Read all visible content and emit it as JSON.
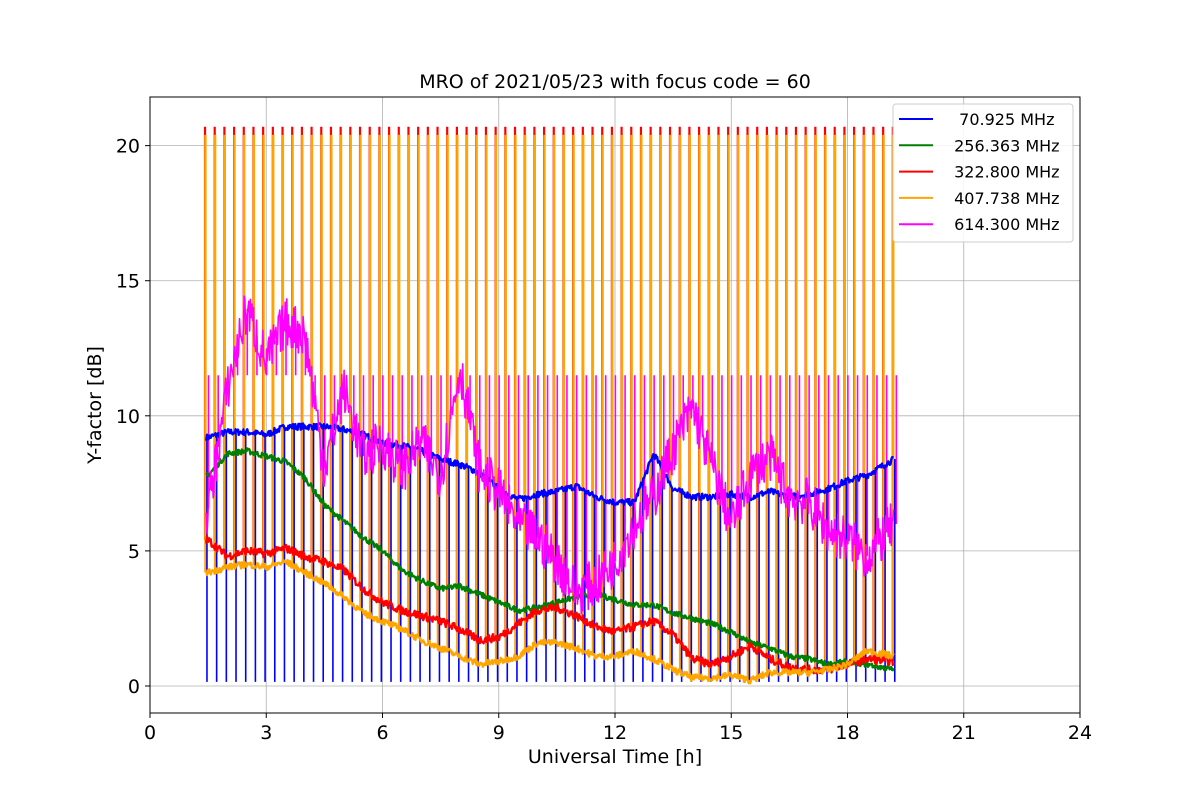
{
  "chart_data": {
    "type": "line",
    "title": "MRO of 2021/05/23 with focus code = 60",
    "xlabel": "Universal Time [h]",
    "ylabel": "Y-factor [dB]",
    "xlim": [
      0,
      24
    ],
    "ylim": [
      -1,
      21.8
    ],
    "xticks": [
      0,
      3,
      6,
      9,
      12,
      15,
      18,
      21,
      24
    ],
    "yticks": [
      0,
      5,
      10,
      15,
      20
    ],
    "grid": true,
    "legend_position": "top-right",
    "x": [
      1.5,
      2.0,
      2.5,
      3.0,
      3.5,
      4.0,
      4.5,
      5.0,
      5.5,
      6.0,
      6.5,
      7.0,
      7.5,
      8.0,
      8.5,
      9.0,
      9.5,
      10.0,
      10.5,
      11.0,
      11.5,
      12.0,
      12.5,
      13.0,
      13.5,
      14.0,
      14.5,
      15.0,
      15.5,
      16.0,
      16.5,
      17.0,
      17.5,
      18.0,
      18.5,
      19.2
    ],
    "series": [
      {
        "name": "  70.925 MHz",
        "color": "#0000ff",
        "values": [
          9.2,
          9.4,
          9.4,
          9.3,
          9.6,
          9.6,
          9.6,
          9.5,
          9.3,
          9.0,
          8.9,
          8.7,
          8.4,
          8.2,
          7.9,
          7.3,
          6.9,
          7.1,
          7.2,
          7.4,
          7.0,
          6.8,
          6.8,
          8.6,
          7.3,
          7.0,
          7.0,
          7.1,
          7.0,
          7.2,
          7.0,
          7.1,
          7.3,
          7.6,
          7.8,
          8.4
        ]
      },
      {
        "name": " 256.363 MHz",
        "color": "#008000",
        "values": [
          7.8,
          8.6,
          8.7,
          8.5,
          8.3,
          7.7,
          6.7,
          6.1,
          5.5,
          5.0,
          4.3,
          3.9,
          3.6,
          3.7,
          3.4,
          3.1,
          2.8,
          2.9,
          3.1,
          3.3,
          3.4,
          3.2,
          3.0,
          3.0,
          2.7,
          2.5,
          2.3,
          2.0,
          1.6,
          1.4,
          1.1,
          1.0,
          0.8,
          0.9,
          0.8,
          0.6
        ]
      },
      {
        "name": " 322.800 MHz",
        "color": "#ff0000",
        "values": [
          5.4,
          4.8,
          5.0,
          4.9,
          5.1,
          4.8,
          4.6,
          4.3,
          3.6,
          3.1,
          2.8,
          2.6,
          2.4,
          2.1,
          1.7,
          1.8,
          2.3,
          2.8,
          2.9,
          2.6,
          2.2,
          2.0,
          2.2,
          2.4,
          1.9,
          1.0,
          0.8,
          1.1,
          1.5,
          1.0,
          0.7,
          0.6,
          0.6,
          0.8,
          1.0,
          0.9
        ]
      },
      {
        "name": " 407.738 MHz",
        "color": "#ffa500",
        "values": [
          4.2,
          4.4,
          4.5,
          4.4,
          4.6,
          4.2,
          3.8,
          3.3,
          2.7,
          2.4,
          2.1,
          1.7,
          1.4,
          1.1,
          0.8,
          0.9,
          1.1,
          1.6,
          1.6,
          1.4,
          1.1,
          1.1,
          1.3,
          1.0,
          0.6,
          0.3,
          0.3,
          0.4,
          0.2,
          0.5,
          0.5,
          0.5,
          0.6,
          0.8,
          1.3,
          1.1
        ]
      },
      {
        "name": " 614.300 MHz",
        "color": "#ff00ff",
        "values": [
          6.5,
          11.0,
          14.0,
          12.0,
          13.5,
          13.0,
          8.0,
          11.0,
          8.5,
          9.0,
          8.0,
          9.0,
          7.8,
          11.8,
          8.0,
          7.2,
          6.0,
          5.5,
          4.6,
          3.5,
          3.8,
          4.6,
          6.0,
          7.0,
          8.8,
          10.3,
          8.2,
          6.0,
          7.8,
          8.5,
          7.0,
          6.8,
          5.8,
          5.4,
          4.8,
          6.0
        ]
      }
    ],
    "envelope": {
      "x_start": 1.42,
      "x_end": 19.3,
      "x_step": 0.25,
      "peak_red": 20.7,
      "peak_orange": 20.4,
      "peak_magenta": 11.5,
      "dip_blue": 0.15
    }
  }
}
